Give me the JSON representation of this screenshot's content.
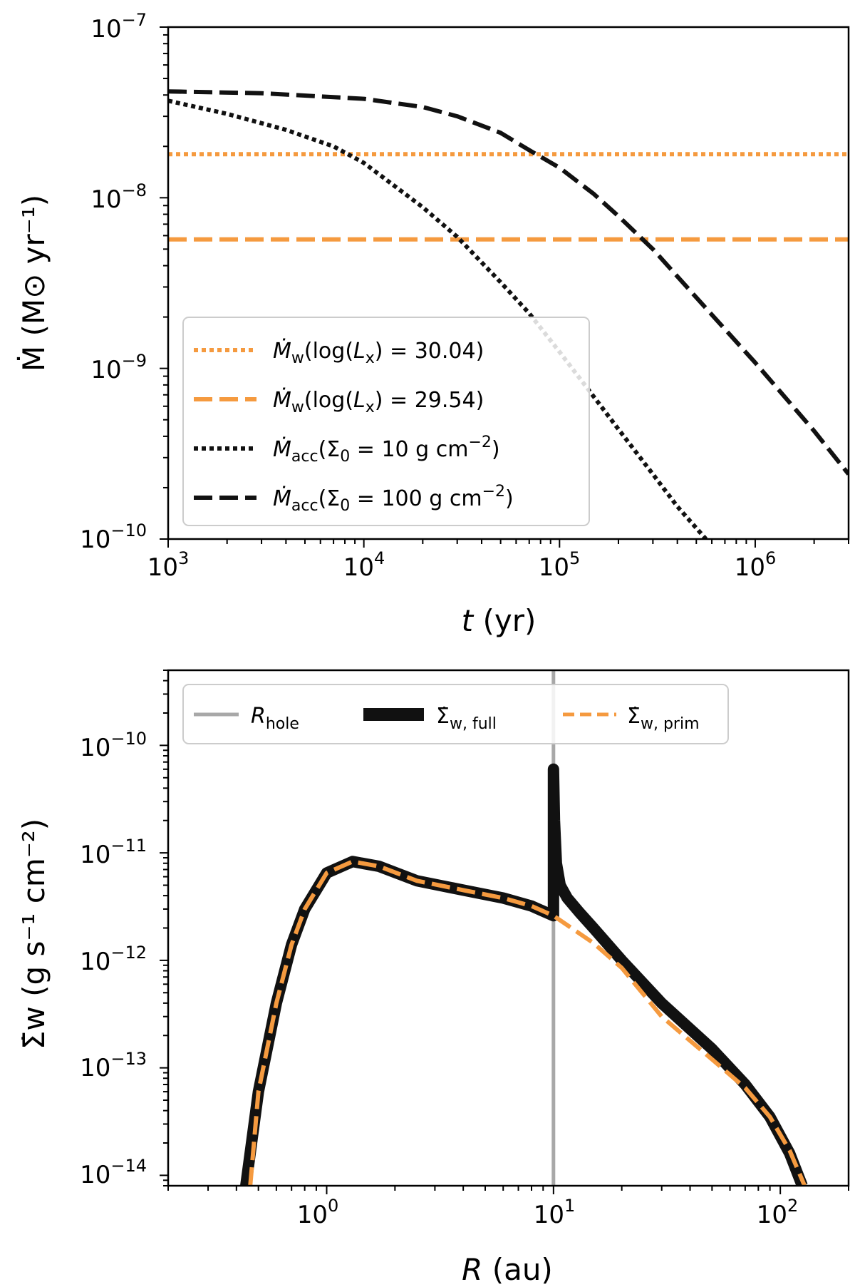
{
  "colors": {
    "orange": "#f59a3f",
    "black": "#111111",
    "gray": "#a8a8a8"
  },
  "chart_data": [
    {
      "type": "line",
      "xscale": "log",
      "yscale": "log",
      "xlim": [
        1000,
        3000000
      ],
      "ylim": [
        1e-10,
        1e-07
      ],
      "xlabel": {
        "t_italic": "t",
        "rest": " (yr)"
      },
      "ylabel": "Ṁ (M⊙ yr⁻¹)",
      "x_ticks": [
        {
          "base": "10",
          "exp": "3"
        },
        {
          "base": "10",
          "exp": "4"
        },
        {
          "base": "10",
          "exp": "5"
        },
        {
          "base": "10",
          "exp": "6"
        }
      ],
      "y_ticks": [
        {
          "base": "10",
          "exp": "−10"
        },
        {
          "base": "10",
          "exp": "−9"
        },
        {
          "base": "10",
          "exp": "−8"
        },
        {
          "base": "10",
          "exp": "−7"
        }
      ],
      "legend_position": "lower-left",
      "series": [
        {
          "name": "Ṁw(log(Lx) = 30.04)",
          "style": "dotted",
          "color": "orange",
          "x": [
            1000,
            3000000
          ],
          "y": [
            1.8e-08,
            1.8e-08
          ]
        },
        {
          "name": "Ṁw(log(Lx) = 29.54)",
          "style": "dashed",
          "color": "orange",
          "x": [
            1000,
            3000000
          ],
          "y": [
            5.7e-09,
            5.7e-09
          ]
        },
        {
          "name": "Ṁacc(Σ0 = 10 g cm⁻²)",
          "style": "dotted",
          "color": "black",
          "x": [
            1000,
            2000,
            4000,
            7000,
            10000,
            20000,
            30000,
            50000,
            70000,
            100000,
            150000,
            200000,
            300000,
            400000,
            560000
          ],
          "y": [
            3.7e-08,
            3.1e-08,
            2.5e-08,
            2e-08,
            1.6e-08,
            8.8e-09,
            5.9e-09,
            3.2e-09,
            2.1e-09,
            1.25e-09,
            6.8e-10,
            4.4e-10,
            2.4e-10,
            1.55e-10,
            1e-10
          ]
        },
        {
          "name": "Ṁacc(Σ0 = 100 g cm⁻²)",
          "style": "dashed",
          "color": "black",
          "x": [
            1000,
            3000,
            10000,
            20000,
            30000,
            50000,
            70000,
            100000,
            150000,
            200000,
            300000,
            500000,
            1000000,
            2000000,
            3000000
          ],
          "y": [
            4.2e-08,
            4.1e-08,
            3.8e-08,
            3.4e-08,
            3e-08,
            2.4e-08,
            1.9e-08,
            1.5e-08,
            1.05e-08,
            7.8e-09,
            5e-09,
            2.6e-09,
            1.08e-09,
            4.3e-10,
            2.4e-10
          ]
        }
      ],
      "legend": [
        {
          "dot": "Ṁ",
          "sub": "w",
          "rest": "(log(",
          "lx": "L",
          "lxsub": "x",
          "end": ") = 30.04)"
        },
        {
          "dot": "Ṁ",
          "sub": "w",
          "rest": "(log(",
          "lx": "L",
          "lxsub": "x",
          "end": ") = 29.54)"
        },
        {
          "dot": "Ṁ",
          "sub": "acc",
          "rest": "(Σ",
          "lx": "",
          "lxsub": "0",
          "end": " = 10 g cm",
          "sup": "−2",
          "close": ")"
        },
        {
          "dot": "Ṁ",
          "sub": "acc",
          "rest": "(Σ",
          "lx": "",
          "lxsub": "0",
          "end": " = 100 g cm",
          "sup": "−2",
          "close": ")"
        }
      ]
    },
    {
      "type": "line",
      "xscale": "log",
      "yscale": "log",
      "xlim": [
        0.2,
        200
      ],
      "ylim": [
        8e-15,
        5e-10
      ],
      "xlabel": {
        "t_italic": "R",
        "rest": " (au)"
      },
      "ylabel": "Σ̇w (g s⁻¹ cm⁻²)",
      "x_ticks": [
        {
          "base": "10",
          "exp": "0"
        },
        {
          "base": "10",
          "exp": "1"
        },
        {
          "base": "10",
          "exp": "2"
        }
      ],
      "y_ticks": [
        {
          "base": "10",
          "exp": "−14"
        },
        {
          "base": "10",
          "exp": "−13"
        },
        {
          "base": "10",
          "exp": "−12"
        },
        {
          "base": "10",
          "exp": "−11"
        },
        {
          "base": "10",
          "exp": "−10"
        }
      ],
      "legend_position": "top",
      "series": [
        {
          "name": "R_hole",
          "style": "solid",
          "color": "gray",
          "x": [
            10,
            10
          ],
          "y": [
            8e-15,
            5e-10
          ]
        },
        {
          "name": "Σ̇w, full",
          "style": "solid-thick",
          "color": "black",
          "x": [
            0.44,
            0.5,
            0.6,
            0.7,
            0.8,
            1.0,
            1.3,
            1.7,
            2.5,
            4,
            6,
            8,
            10,
            10,
            10.1,
            10.3,
            10.7,
            11.5,
            13,
            15,
            20,
            30,
            50,
            70,
            90,
            110,
            125
          ],
          "y": [
            8e-15,
            6e-14,
            4e-13,
            1.4e-12,
            3e-12,
            6.5e-12,
            8.3e-12,
            7.5e-12,
            5.5e-12,
            4.5e-12,
            3.8e-12,
            3.2e-12,
            2.6e-12,
            6e-11,
            2e-11,
            8e-12,
            5e-12,
            3.8e-12,
            2.8e-12,
            2e-12,
            1e-12,
            4e-13,
            1.5e-13,
            7e-14,
            3.5e-14,
            1.6e-14,
            8e-15
          ]
        },
        {
          "name": "Σ̇w, prim",
          "style": "dashed",
          "color": "orange",
          "x": [
            0.46,
            0.5,
            0.6,
            0.7,
            0.8,
            1.0,
            1.3,
            1.7,
            2.5,
            4,
            6,
            8,
            10,
            12,
            15,
            20,
            30,
            50,
            70,
            90,
            110,
            128
          ],
          "y": [
            8e-15,
            6e-14,
            4e-13,
            1.4e-12,
            3e-12,
            6.5e-12,
            8.3e-12,
            7.5e-12,
            5.5e-12,
            4.5e-12,
            3.8e-12,
            3.2e-12,
            2.6e-12,
            2e-12,
            1.45e-12,
            8.5e-13,
            3e-13,
            1.2e-13,
            6.5e-14,
            3.5e-14,
            1.7e-14,
            8e-15
          ]
        }
      ],
      "legend": [
        {
          "main": "R",
          "sub": "hole"
        },
        {
          "main": "Σ̇",
          "sub": "w, full"
        },
        {
          "main": "Σ̇",
          "sub": "w, prim"
        }
      ]
    }
  ]
}
